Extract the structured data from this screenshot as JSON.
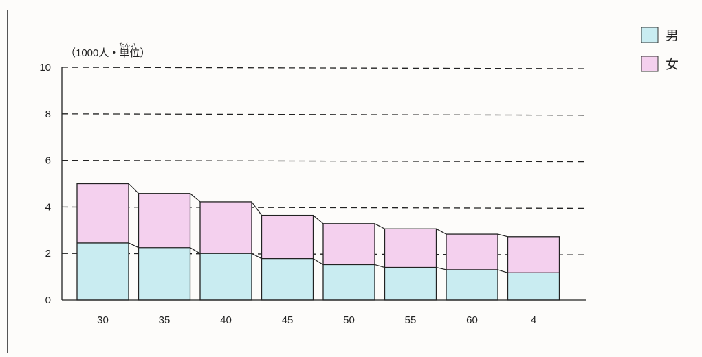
{
  "chart_data": {
    "type": "bar",
    "stacked": true,
    "categories": [
      "30",
      "35",
      "40",
      "45",
      "50",
      "55",
      "60",
      "4"
    ],
    "series": [
      {
        "name": "男",
        "color": "#c9ecf1",
        "values": [
          2.45,
          2.25,
          2.0,
          1.78,
          1.52,
          1.4,
          1.3,
          1.17
        ]
      },
      {
        "name": "女",
        "color": "#f4d0ee",
        "values": [
          2.55,
          2.33,
          2.22,
          1.86,
          1.76,
          1.66,
          1.53,
          1.55
        ]
      }
    ],
    "unit_label": "（1000人・単位）",
    "unit_ruby": "たんい",
    "yticks": [
      0,
      2,
      4,
      6,
      8,
      10
    ],
    "ylim": [
      0,
      10
    ],
    "grid": "dashed",
    "legend": "top-right"
  }
}
